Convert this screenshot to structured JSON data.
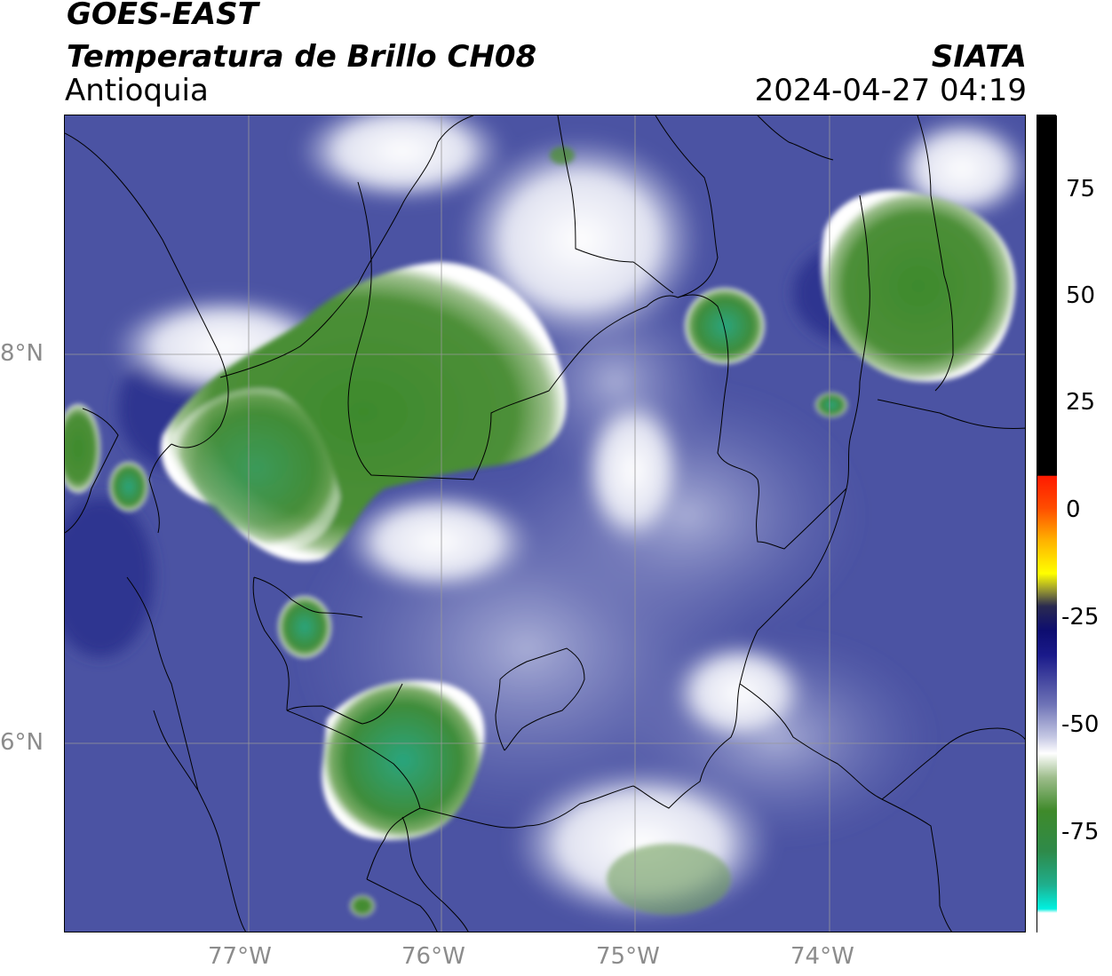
{
  "header": {
    "satellite": "GOES-EAST",
    "product": "Temperatura de Brillo CH08",
    "region": "Antioquia",
    "agency": "SIATA",
    "datetime": "2024-04-27 04:19"
  },
  "axes": {
    "lon_labels": [
      "77°W",
      "76°W",
      "75°W",
      "74°W"
    ],
    "lat_labels": [
      "8°N",
      "6°N"
    ]
  },
  "colorbar": {
    "ticks": [
      "75",
      "50",
      "25",
      "0",
      "-25",
      "-50",
      "-75"
    ],
    "colors": {
      "black": "#000000",
      "red": "#ff2a00",
      "orange": "#ff9900",
      "yellow": "#ffff00",
      "navy": "#1a1a80",
      "slate": "#5a5fa8",
      "white": "#ffffff",
      "green": "#3f8a2a",
      "teal": "#2fa582",
      "cyan": "#00f0e0"
    }
  },
  "map_colors": {
    "background": "#4b53a3",
    "deep": "#2e3590",
    "light": "#8f95c8",
    "pale": "#d9dcef",
    "cloud_green": "#4f8f3a",
    "cloud_teal": "#2e9f70"
  }
}
